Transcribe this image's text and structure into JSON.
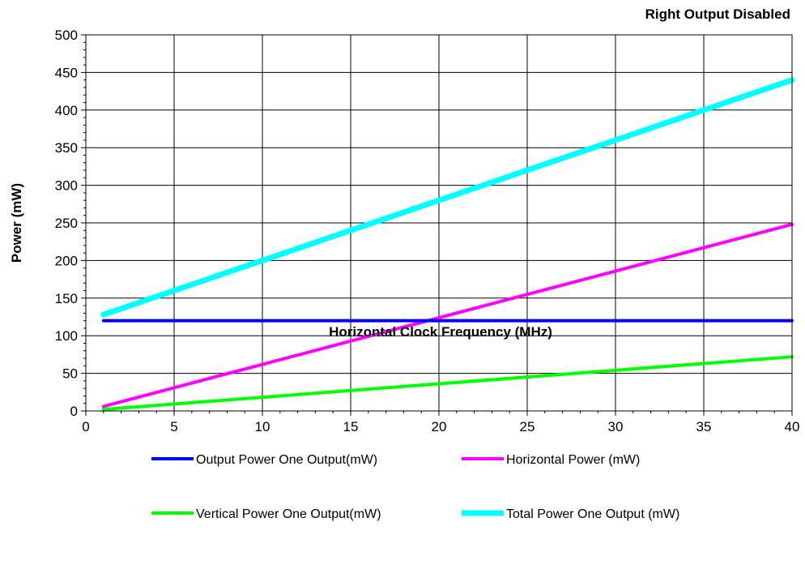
{
  "chart_data": {
    "type": "line",
    "title": "Right Output Disabled",
    "xlabel": "Horizontal Clock Frequency (MHz)",
    "ylabel": "Power (mW)",
    "xlim": [
      0,
      40
    ],
    "ylim": [
      0,
      500
    ],
    "xticks": [
      0,
      5,
      10,
      15,
      20,
      25,
      30,
      35,
      40
    ],
    "yticks": [
      0,
      50,
      100,
      150,
      200,
      250,
      300,
      350,
      400,
      450,
      500
    ],
    "grid": true,
    "legend_position": "bottom",
    "series": [
      {
        "name": "Output Power One Output(mW)",
        "color": "#0000ff",
        "x": [
          1,
          40
        ],
        "y": [
          120,
          120
        ]
      },
      {
        "name": "Horizontal Power (mW)",
        "color": "#ff00ff",
        "x": [
          1,
          40
        ],
        "y": [
          6,
          248
        ]
      },
      {
        "name": "Vertical Power One Output(mW)",
        "color": "#00ff00",
        "x": [
          1,
          40
        ],
        "y": [
          2,
          72
        ]
      },
      {
        "name": "Total Power One Output (mW)",
        "color": "#00ffff",
        "x": [
          1,
          40
        ],
        "y": [
          128,
          440
        ]
      }
    ]
  }
}
